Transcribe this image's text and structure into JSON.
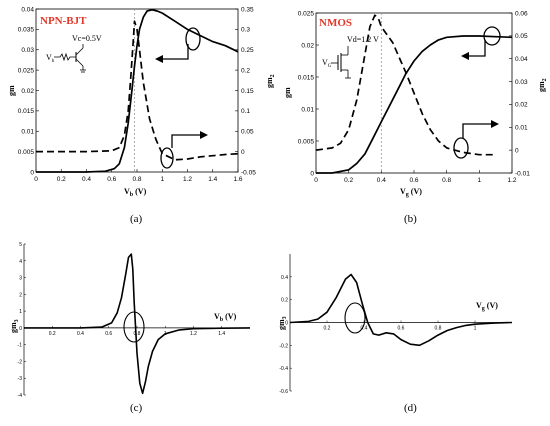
{
  "captions": [
    "(a)",
    "(b)",
    "(c)",
    "(d)"
  ],
  "colors": {
    "title": "#e03a2a",
    "line": "#000000",
    "marker": "#999999"
  },
  "chart_data": [
    {
      "type": "line",
      "title": "NPN-BJT",
      "annotation": "Vc=0.5V",
      "source_label": "V",
      "source_sub": "b",
      "xlabel": "V",
      "xlabel_sub": "b",
      "xunit": "(V)",
      "ylabel": "gm",
      "y2label": "gm",
      "y2label_sub": "2",
      "xlim": [
        0,
        1.6
      ],
      "ylim": [
        0,
        0.04
      ],
      "y2lim": [
        -0.05,
        0.35
      ],
      "xticks": [
        "0",
        "0.2",
        "0.4",
        "0.6",
        "0.8",
        "1",
        "1.2",
        "1.4",
        "1.6"
      ],
      "yticks": [
        "0",
        "0.005",
        "0.01",
        "0.015",
        "0.02",
        "0.025",
        "0.03",
        "0.035",
        "0.04"
      ],
      "y2ticks": [
        "-0.05",
        "0",
        "0.05",
        "0.1",
        "0.15",
        "0.2",
        "0.25",
        "0.3",
        "0.35"
      ],
      "marker_x": 0.78,
      "series": [
        {
          "axis": "left",
          "style": "solid",
          "x": [
            0.0,
            0.2,
            0.4,
            0.55,
            0.62,
            0.66,
            0.7,
            0.73,
            0.76,
            0.78,
            0.8,
            0.82,
            0.85,
            0.88,
            0.92,
            0.96,
            1.0,
            1.1,
            1.2,
            1.3,
            1.4,
            1.5,
            1.6
          ],
          "y": [
            0.0,
            0.0,
            0.0,
            0.0002,
            0.0008,
            0.002,
            0.006,
            0.012,
            0.02,
            0.026,
            0.031,
            0.035,
            0.038,
            0.0395,
            0.0398,
            0.0395,
            0.039,
            0.037,
            0.035,
            0.0335,
            0.032,
            0.031,
            0.0295
          ]
        },
        {
          "axis": "right",
          "style": "dashed",
          "x": [
            0.0,
            0.2,
            0.4,
            0.6,
            0.66,
            0.7,
            0.73,
            0.75,
            0.77,
            0.78,
            0.8,
            0.82,
            0.85,
            0.9,
            0.95,
            1.0,
            1.1,
            1.2,
            1.3,
            1.4,
            1.5,
            1.6
          ],
          "y": [
            0.0,
            0.0,
            0.0,
            0.002,
            0.01,
            0.04,
            0.1,
            0.18,
            0.27,
            0.32,
            0.3,
            0.25,
            0.17,
            0.08,
            0.03,
            -0.005,
            -0.02,
            -0.018,
            -0.013,
            -0.01,
            -0.007,
            -0.005
          ]
        }
      ]
    },
    {
      "type": "line",
      "title": "NMOS",
      "annotation": "Vd=1.2 V",
      "source_label": "V",
      "source_sub": "G",
      "xlabel": "V",
      "xlabel_sub": "g",
      "xunit": "(V)",
      "ylabel": "gm",
      "y2label": "gm",
      "y2label_sub": "2",
      "xlim": [
        0,
        1.2
      ],
      "ylim": [
        0,
        0.025
      ],
      "y2lim": [
        -0.01,
        0.06
      ],
      "xticks": [
        "0",
        "0.2",
        "0.4",
        "0.6",
        "0.8",
        "1",
        "1.2"
      ],
      "yticks": [
        "0",
        "0.005",
        "0.01",
        "0.015",
        "0.02",
        "0.025"
      ],
      "y2ticks": [
        "-0.01",
        "0",
        "0.01",
        "0.02",
        "0.03",
        "0.04",
        "0.05",
        "0.06"
      ],
      "marker_x": 0.4,
      "series": [
        {
          "axis": "left",
          "style": "solid",
          "x": [
            0.0,
            0.1,
            0.2,
            0.25,
            0.3,
            0.35,
            0.4,
            0.45,
            0.5,
            0.55,
            0.6,
            0.65,
            0.7,
            0.75,
            0.8,
            0.9,
            1.0,
            1.1,
            1.2
          ],
          "y": [
            0.0,
            0.0,
            0.0005,
            0.0015,
            0.003,
            0.0055,
            0.008,
            0.0105,
            0.013,
            0.0155,
            0.0175,
            0.019,
            0.02,
            0.0208,
            0.0212,
            0.0214,
            0.0214,
            0.0213,
            0.0212
          ]
        },
        {
          "axis": "right",
          "style": "dashed",
          "x": [
            0.0,
            0.1,
            0.15,
            0.2,
            0.25,
            0.3,
            0.33,
            0.36,
            0.38,
            0.4,
            0.43,
            0.47,
            0.5,
            0.55,
            0.6,
            0.65,
            0.7,
            0.75,
            0.8,
            0.9,
            1.0,
            1.1
          ],
          "y": [
            0.0,
            0.001,
            0.003,
            0.009,
            0.022,
            0.042,
            0.054,
            0.059,
            0.058,
            0.054,
            0.051,
            0.047,
            0.042,
            0.034,
            0.025,
            0.016,
            0.009,
            0.004,
            0.001,
            -0.001,
            -0.002,
            -0.002
          ]
        }
      ]
    },
    {
      "type": "line",
      "title": "",
      "xlabel": "V",
      "xlabel_sub": "b",
      "xunit": "(V)",
      "ylabel": "gm",
      "ylabel_sub": "3",
      "xlim": [
        0,
        1.6
      ],
      "ylim": [
        -4,
        5
      ],
      "xticks": [
        "0.2",
        "0.4",
        "0.6",
        "0.8",
        "1",
        "1.2",
        "1.4"
      ],
      "yticks": [
        "-4",
        "-3",
        "-2",
        "-1",
        "0",
        "1",
        "2",
        "3",
        "4",
        "5"
      ],
      "series": [
        {
          "axis": "left",
          "style": "solid",
          "x": [
            0.0,
            0.4,
            0.55,
            0.62,
            0.66,
            0.69,
            0.72,
            0.74,
            0.76,
            0.77,
            0.78,
            0.8,
            0.82,
            0.84,
            0.86,
            0.88,
            0.91,
            0.95,
            1.0,
            1.1,
            1.2,
            1.4,
            1.6
          ],
          "y": [
            0.0,
            0.0,
            0.05,
            0.3,
            0.9,
            1.8,
            3.2,
            4.2,
            4.4,
            3.5,
            1.5,
            -1.5,
            -3.3,
            -3.9,
            -3.2,
            -2.3,
            -1.4,
            -0.7,
            -0.35,
            -0.12,
            -0.05,
            -0.02,
            0.0
          ]
        }
      ]
    },
    {
      "type": "line",
      "title": "",
      "xlabel": "V",
      "xlabel_sub": "g",
      "xunit": "(V)",
      "ylabel": "gm",
      "ylabel_sub": "3",
      "xlim": [
        0,
        1.2
      ],
      "ylim": [
        -0.6,
        0.6
      ],
      "xticks": [
        "0.2",
        "0.4",
        "0.6",
        "0.8",
        "1"
      ],
      "yticks": [
        "-0.6",
        "-0.4",
        "-0.2",
        "0",
        "0.2",
        "0.4"
      ],
      "series": [
        {
          "axis": "left",
          "style": "solid",
          "x": [
            0.0,
            0.1,
            0.15,
            0.2,
            0.25,
            0.3,
            0.33,
            0.36,
            0.39,
            0.42,
            0.45,
            0.48,
            0.52,
            0.56,
            0.6,
            0.65,
            0.7,
            0.75,
            0.8,
            0.85,
            0.9,
            0.95,
            1.0,
            1.1,
            1.2
          ],
          "y": [
            0.0,
            0.01,
            0.03,
            0.09,
            0.22,
            0.38,
            0.42,
            0.35,
            0.17,
            0.0,
            -0.1,
            -0.11,
            -0.09,
            -0.1,
            -0.15,
            -0.19,
            -0.2,
            -0.16,
            -0.11,
            -0.07,
            -0.045,
            -0.025,
            -0.015,
            -0.005,
            0.0
          ]
        }
      ]
    }
  ]
}
